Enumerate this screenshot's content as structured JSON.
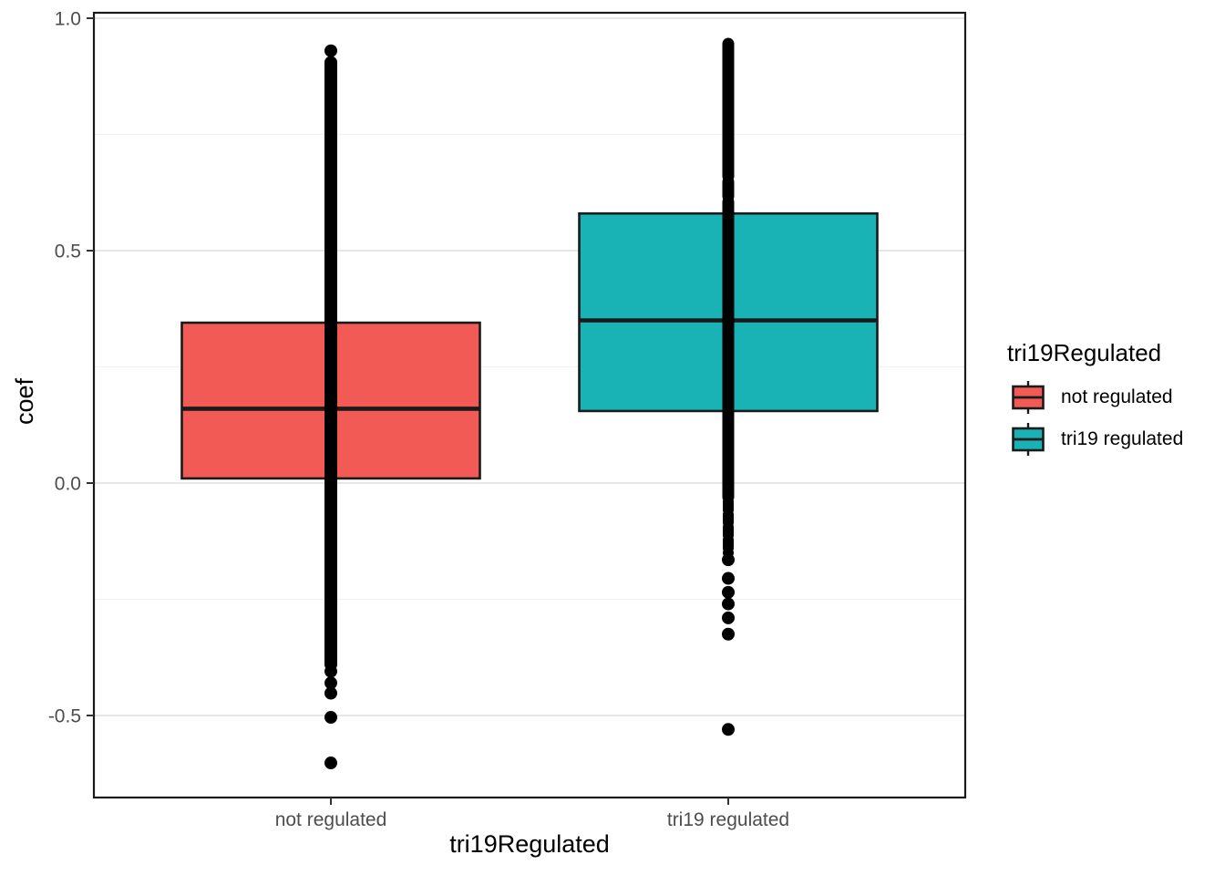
{
  "chart_data": {
    "type": "boxplot",
    "title": "",
    "xlabel": "tri19Regulated",
    "ylabel": "coef",
    "ylim": [
      -0.68,
      1.01
    ],
    "y_major_ticks": [
      1.0,
      0.5,
      0.0,
      -0.5
    ],
    "y_minor_ticks": [
      0.75,
      0.25,
      -0.25
    ],
    "categories": [
      "not regulated",
      "tri19 regulated"
    ],
    "grid": true,
    "legend_position": "right",
    "legend": {
      "title": "tri19Regulated",
      "entries": [
        {
          "label": "not regulated",
          "color": "#F25B55"
        },
        {
          "label": "tri19 regulated",
          "color": "#1AB3B5"
        }
      ]
    },
    "boxes": [
      {
        "category": "not regulated",
        "fill": "#F25B55",
        "q1": 0.01,
        "median": 0.16,
        "q3": 0.345,
        "points": {
          "dense_ranges": [
            [
              0.905,
              -0.39
            ]
          ],
          "chain_ranges": [],
          "dots": [
            0.93,
            -0.405,
            -0.43,
            -0.452,
            -0.504,
            -0.602
          ]
        }
      },
      {
        "category": "tri19 regulated",
        "fill": "#1AB3B5",
        "q1": 0.155,
        "median": 0.35,
        "q3": 0.58,
        "points": {
          "dense_ranges": [
            [
              0.945,
              0.66
            ],
            [
              0.648,
              0.617
            ],
            [
              0.605,
              -0.03
            ]
          ],
          "chain_ranges": [
            [
              -0.04,
              -0.15
            ]
          ],
          "dots": [
            -0.165,
            -0.205,
            -0.235,
            -0.26,
            -0.29,
            -0.325,
            -0.53
          ]
        }
      }
    ],
    "colors": {
      "point": "#000000",
      "box_border": "#1A1A1A",
      "panel_border": "#1A1A1A",
      "tick_mark": "#333333",
      "grid_major": "#E6E6E6",
      "grid_minor": "#F2F2F2",
      "tick_label": "#4D4D4D",
      "axis_title": "#000000",
      "background": "#FFFFFF"
    }
  }
}
